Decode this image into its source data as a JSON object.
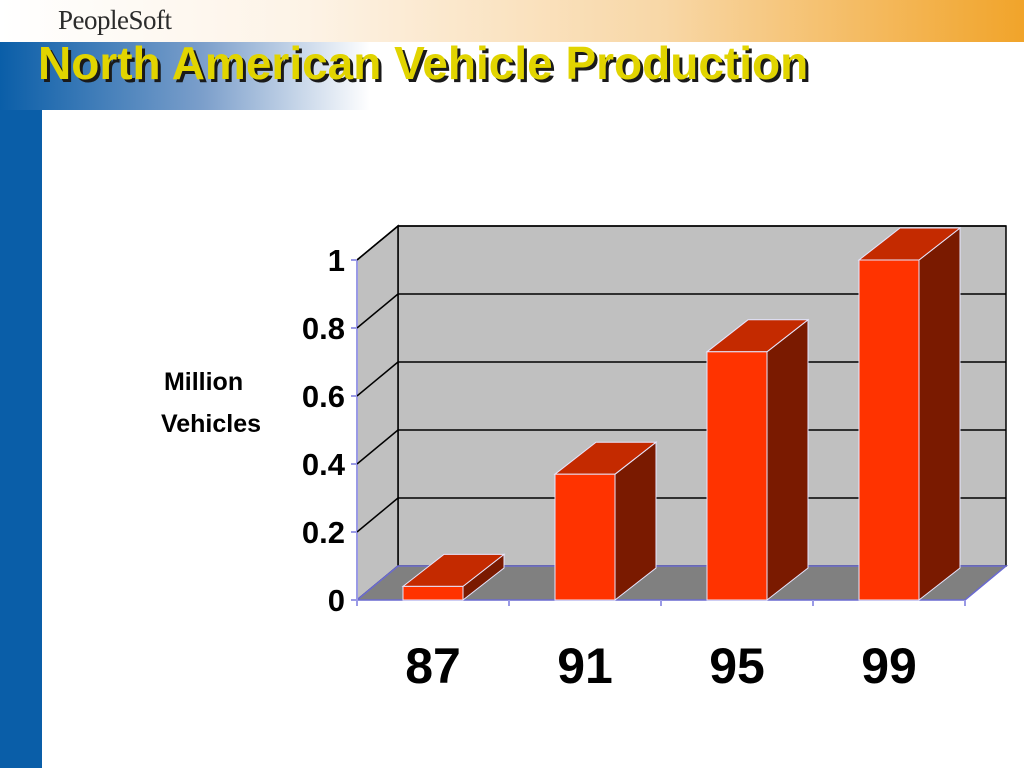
{
  "header": {
    "brand": "PeopleSoft",
    "title": "North American Vehicle Production"
  },
  "colors": {
    "accent_blue": "#0a5ea8",
    "title_yellow": "#e1d400",
    "bar_front": "#ff3300",
    "bar_top": "#c42a00",
    "bar_side": "#7a1a00",
    "wall": "#c0c0c0",
    "floor": "#808080"
  },
  "chart_data": {
    "type": "bar",
    "title": "North American Vehicle Production",
    "categories": [
      "87",
      "91",
      "95",
      "99"
    ],
    "values": [
      0.04,
      0.37,
      0.73,
      1.0
    ],
    "ylabel_lines": [
      "Million",
      "Vehicles"
    ],
    "xlabel": "",
    "ylim": [
      0,
      1
    ],
    "yticks": [
      0,
      0.2,
      0.4,
      0.6,
      0.8,
      1
    ],
    "ytick_labels": [
      "0",
      "0.2",
      "0.4",
      "0.6",
      "0.8",
      "1"
    ],
    "grid": true,
    "style": "3d-column"
  }
}
